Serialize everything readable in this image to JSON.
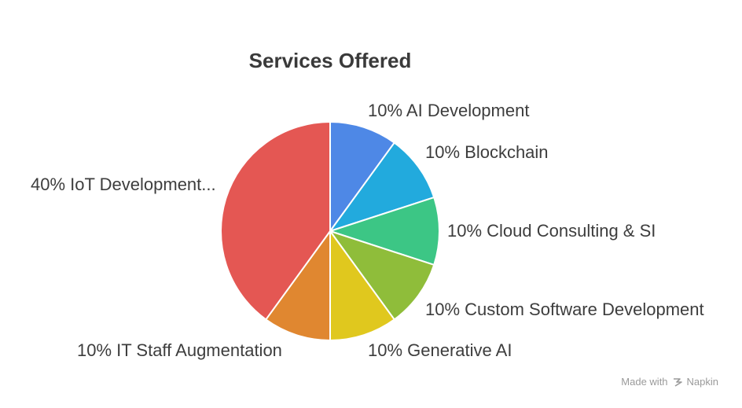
{
  "chart_data": {
    "type": "pie",
    "title": "Services Offered",
    "slices": [
      {
        "label": "10% AI Development",
        "value": 10,
        "color": "#4e88e6"
      },
      {
        "label": "10% Blockchain",
        "value": 10,
        "color": "#22aadd"
      },
      {
        "label": "10% Cloud Consulting & SI",
        "value": 10,
        "color": "#3cc685"
      },
      {
        "label": "10% Custom Software Development",
        "value": 10,
        "color": "#8fbd3a"
      },
      {
        "label": "10% Generative AI",
        "value": 10,
        "color": "#e0c81e"
      },
      {
        "label": "10% IT Staff Augmentation",
        "value": 10,
        "color": "#e08730"
      },
      {
        "label": "40% IoT Development...",
        "value": 40,
        "color": "#e45753"
      }
    ]
  },
  "footer": {
    "made_with": "Made with",
    "brand": "Napkin"
  }
}
